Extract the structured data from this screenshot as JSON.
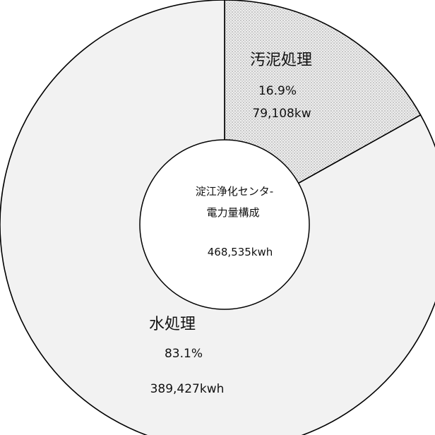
{
  "chart_data": {
    "type": "pie",
    "center_label": {
      "line1": "淀江浄化センタ-",
      "line2": "電力量構成",
      "total": "468,535kwh"
    },
    "slices": [
      {
        "name": "汚泥処理",
        "value": 79108,
        "percent": 16.9,
        "percent_label": "16.9%",
        "value_label": "79,108kw",
        "fill": "#e8e8e8",
        "pattern": "dots"
      },
      {
        "name": "水処理",
        "value": 389427,
        "percent": 83.1,
        "percent_label": "83.1%",
        "value_label": "389,427kwh",
        "fill": "#f2f2f2",
        "pattern": "none"
      }
    ],
    "start_angle_deg": 0,
    "direction": "clockwise",
    "donut": true
  }
}
